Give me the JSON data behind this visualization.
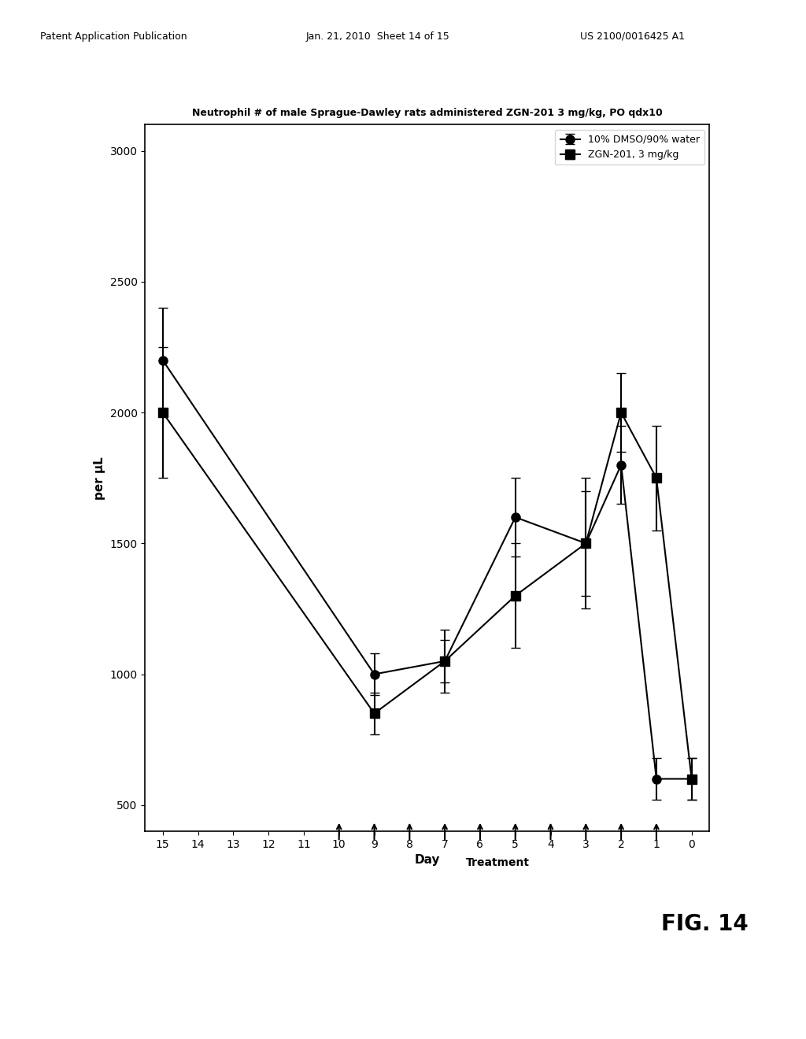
{
  "title": "Neutrophil # of male Sprague-Dawley rats administered ZGN-201 3 mg/kg, PO qdx10",
  "ylabel": "per µL",
  "xlabel": "Day",
  "fig_label": "FIG. 14",
  "patent_header": "Patent Application Publication    Jan. 21, 2010  Sheet 14 of 15    US 2010/0016425 A1",
  "ylim": [
    500,
    3000
  ],
  "yticks": [
    500,
    1000,
    1500,
    2000,
    2500,
    3000
  ],
  "xlim": [
    -0.5,
    15.5
  ],
  "xticks": [
    0,
    1,
    2,
    3,
    4,
    5,
    6,
    7,
    8,
    9,
    10,
    11,
    12,
    13,
    14,
    15
  ],
  "series1_label": "10% DMSO/90% water",
  "series2_label": "ZGN-201, 3 mg/kg",
  "series1_x": [
    0,
    1,
    2,
    3,
    5,
    7,
    9,
    15
  ],
  "series1_y": [
    600,
    600,
    1800,
    1500,
    1600,
    1050,
    1000,
    2200
  ],
  "series1_yerr": [
    80,
    80,
    150,
    200,
    150,
    80,
    80,
    200
  ],
  "series2_x": [
    0,
    1,
    2,
    3,
    5,
    7,
    9,
    15
  ],
  "series2_y": [
    600,
    1750,
    2000,
    1500,
    1300,
    1050,
    850,
    2000
  ],
  "series2_yerr": [
    80,
    200,
    150,
    250,
    200,
    120,
    80,
    250
  ],
  "arrow_days": [
    1,
    2,
    3,
    4,
    5,
    6,
    7,
    8,
    9,
    10
  ],
  "background_color": "#ffffff",
  "plot_bg_color": "#ffffff",
  "line_color": "#000000",
  "marker_color": "#000000"
}
